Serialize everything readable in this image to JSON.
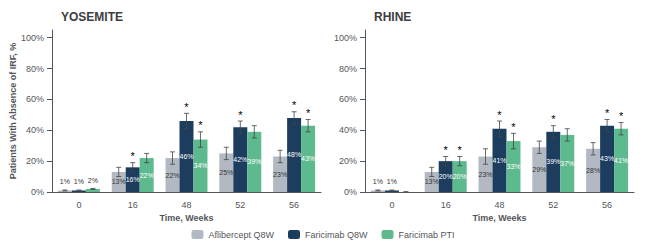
{
  "chart_data": [
    {
      "type": "bar",
      "title": "YOSEMITE",
      "xlabel": "Time, Weeks",
      "ylabel": "Patients With Absence of IRF, %",
      "categories": [
        "0",
        "16",
        "48",
        "52",
        "56"
      ],
      "series": [
        {
          "name": "Aflibercept Q8W",
          "color": "#b2b9c2",
          "values": [
            1,
            13,
            22,
            25,
            23
          ],
          "value_labels": [
            "1%",
            "13%",
            "22%",
            "25%",
            "23%"
          ],
          "errors": [
            0.3,
            3,
            4,
            4,
            4
          ]
        },
        {
          "name": "Faricimab Q8W",
          "color": "#1c3d5e",
          "values": [
            1,
            16,
            46,
            42,
            48
          ],
          "value_labels": [
            "1%",
            "16%",
            "46%",
            "42%",
            "48%"
          ],
          "errors": [
            0.3,
            3,
            5,
            4,
            4
          ],
          "significance": [
            null,
            "*",
            "*",
            "*",
            "*"
          ]
        },
        {
          "name": "Faricimab PTI",
          "color": "#5dba8e",
          "values": [
            2,
            22,
            34,
            39,
            43
          ],
          "value_labels": [
            "2%",
            "22%",
            "34%",
            "39%",
            "43%"
          ],
          "errors": [
            0.3,
            3,
            5,
            4,
            4
          ],
          "significance": [
            null,
            null,
            "*",
            null,
            "*"
          ]
        }
      ],
      "ylim": [
        0,
        105
      ],
      "yticks": [
        {
          "value": 0,
          "label": "0%"
        },
        {
          "value": 20,
          "label": "20%"
        },
        {
          "value": 40,
          "label": "40%"
        },
        {
          "value": 60,
          "label": "60%"
        },
        {
          "value": 80,
          "label": "80%"
        },
        {
          "value": 100,
          "label": "100%"
        }
      ],
      "grid": false,
      "legend": "bottom",
      "data_labels": true
    },
    {
      "type": "bar",
      "title": "RHINE",
      "xlabel": "Time, Weeks",
      "categories": [
        "0",
        "16",
        "48",
        "52",
        "56"
      ],
      "series": [
        {
          "name": "Aflibercept Q8W",
          "color": "#b2b9c2",
          "values": [
            1,
            13,
            23,
            29,
            28
          ],
          "value_labels": [
            "1%",
            "13%",
            "23%",
            "29%",
            "28%"
          ],
          "errors": [
            0.3,
            3,
            5,
            4,
            4
          ]
        },
        {
          "name": "Faricimab Q8W",
          "color": "#1c3d5e",
          "values": [
            1,
            20,
            41,
            39,
            43
          ],
          "value_labels": [
            "1%",
            "20%",
            "41%",
            "39%",
            "43%"
          ],
          "errors": [
            0.3,
            3,
            5,
            4,
            4
          ],
          "significance": [
            null,
            "*",
            "*",
            "*",
            "*"
          ]
        },
        {
          "name": "Faricimab PTI",
          "color": "#5dba8e",
          "values": [
            0,
            20,
            33,
            37,
            41
          ],
          "value_labels": [
            null,
            "20%",
            "33%",
            "37%",
            "41%"
          ],
          "errors": [
            0.3,
            3,
            5,
            4,
            4
          ],
          "significance": [
            null,
            "*",
            "*",
            null,
            "*"
          ]
        }
      ],
      "ylim": [
        0,
        105
      ],
      "yticks": [
        {
          "value": 0,
          "label": "0%"
        },
        {
          "value": 20,
          "label": "20%"
        },
        {
          "value": 40,
          "label": "40%"
        },
        {
          "value": 60,
          "label": "60%"
        },
        {
          "value": 80,
          "label": "80%"
        },
        {
          "value": 100,
          "label": "100%"
        }
      ],
      "grid": false,
      "data_labels": true
    }
  ]
}
